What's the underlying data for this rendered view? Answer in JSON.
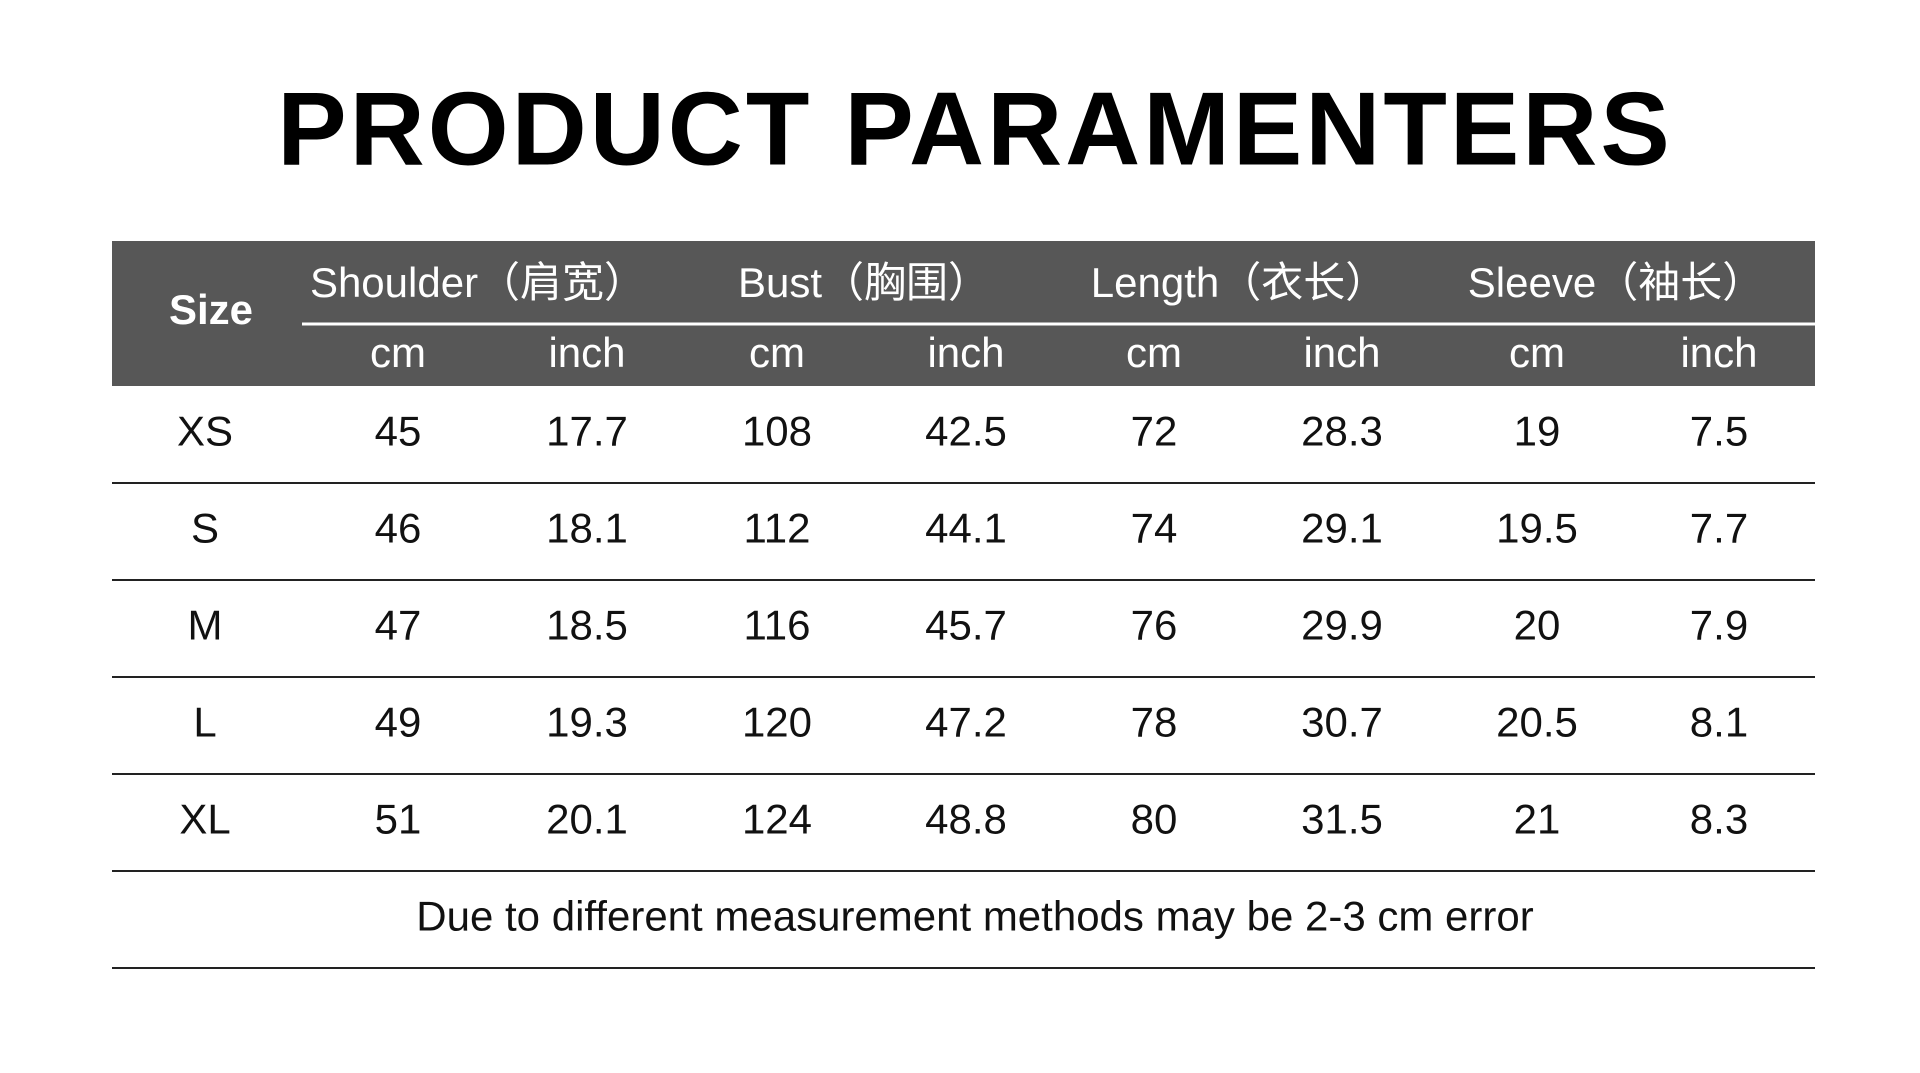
{
  "title": "PRODUCT PARAMENTERS",
  "table": {
    "size_header": "Size",
    "groups": [
      {
        "name": "Shoulder（肩宽）",
        "units": [
          "cm",
          "inch"
        ]
      },
      {
        "name": "Bust（胸围）",
        "units": [
          "cm",
          "inch"
        ]
      },
      {
        "name": "Length（衣长）",
        "units": [
          "cm",
          "inch"
        ]
      },
      {
        "name": "Sleeve（袖长）",
        "units": [
          "cm",
          "inch"
        ]
      }
    ],
    "rows": [
      [
        "XS",
        "45",
        "17.7",
        "108",
        "42.5",
        "72",
        "28.3",
        "19",
        "7.5"
      ],
      [
        "S",
        "46",
        "18.1",
        "112",
        "44.1",
        "74",
        "29.1",
        "19.5",
        "7.7"
      ],
      [
        "M",
        "47",
        "18.5",
        "116",
        "45.7",
        "76",
        "29.9",
        "20",
        "7.9"
      ],
      [
        "L",
        "49",
        "19.3",
        "120",
        "47.2",
        "78",
        "30.7",
        "20.5",
        "8.1"
      ],
      [
        "XL",
        "51",
        "20.1",
        "124",
        "48.8",
        "80",
        "31.5",
        "21",
        "8.3"
      ]
    ],
    "note": "Due to different measurement methods may be 2-3 cm error"
  }
}
